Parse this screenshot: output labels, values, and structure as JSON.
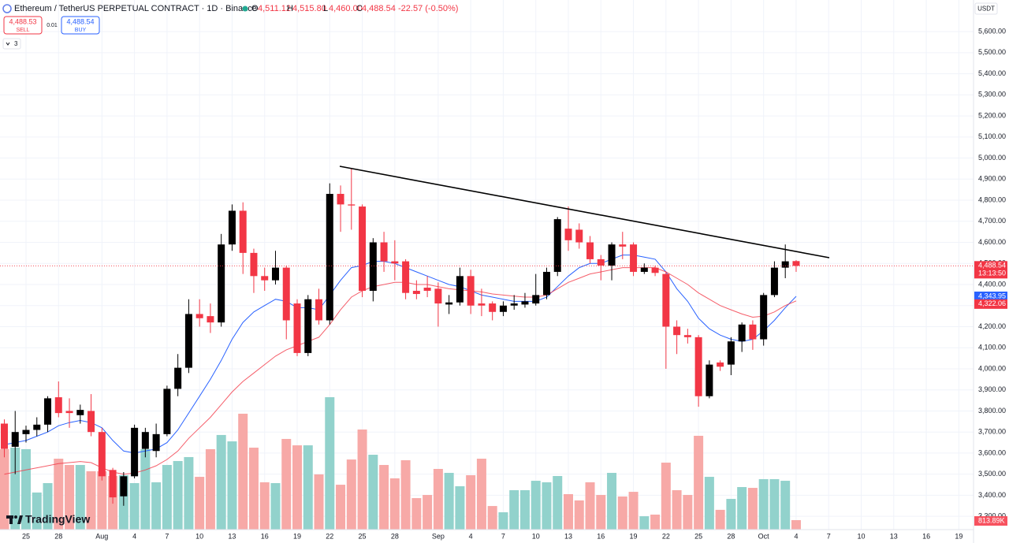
{
  "header": {
    "title": "Ethereum / TetherUS PERPETUAL CONTRACT · 1D · Binance",
    "o_label": "O",
    "open": "4,511.12",
    "h_label": "H",
    "high": "4,515.80",
    "l_label": "L",
    "low": "4,460.00",
    "c_label": "C",
    "close": "4,488.54",
    "change": "-22.57 (-0.50%)"
  },
  "trade": {
    "sell_price": "4,488.53",
    "sell": "SELL",
    "spread": "0.01",
    "buy_price": "4,488.54",
    "buy": "BUY",
    "indicators": "3"
  },
  "currency": "USDT",
  "logo": "TradingView",
  "chart_data": {
    "type": "candlestick",
    "ylim": [
      3237,
      5750
    ],
    "yticks": [
      {
        "value": 3300,
        "label": "3,300.00"
      },
      {
        "value": 3400,
        "label": "3,400.00"
      },
      {
        "value": 3500,
        "label": "3,500.00"
      },
      {
        "value": 3600,
        "label": "3,600.00"
      },
      {
        "value": 3700,
        "label": "3,700.00"
      },
      {
        "value": 3800,
        "label": "3,800.00"
      },
      {
        "value": 3900,
        "label": "3,900.00"
      },
      {
        "value": 4000,
        "label": "4,000.00"
      },
      {
        "value": 4100,
        "label": "4,100.00"
      },
      {
        "value": 4200,
        "label": "4,200.00"
      },
      {
        "value": 4300,
        "label": "4,300.00"
      },
      {
        "value": 4400,
        "label": "4,400.00"
      },
      {
        "value": 4500,
        "label": "4,500.00"
      },
      {
        "value": 4600,
        "label": "4,600.00"
      },
      {
        "value": 4700,
        "label": "4,700.00"
      },
      {
        "value": 4800,
        "label": "4,800.00"
      },
      {
        "value": 4900,
        "label": "4,900.00"
      },
      {
        "value": 5000,
        "label": "5,000.00"
      },
      {
        "value": 5100,
        "label": "5,100.00"
      },
      {
        "value": 5200,
        "label": "5,200.00"
      },
      {
        "value": 5300,
        "label": "5,300.00"
      },
      {
        "value": 5400,
        "label": "5,400.00"
      },
      {
        "value": 5500,
        "label": "5,500.00"
      },
      {
        "value": 5600,
        "label": "5,600.00"
      }
    ],
    "grid": true,
    "categories": [
      null,
      null,
      "25",
      null,
      null,
      "28",
      null,
      null,
      null,
      "Aug",
      null,
      null,
      "4",
      null,
      null,
      "7",
      null,
      null,
      "10",
      null,
      null,
      "13",
      null,
      null,
      "16",
      null,
      null,
      "19",
      null,
      null,
      "22",
      null,
      null,
      "25",
      null,
      null,
      "28",
      null,
      null,
      null,
      "Sep",
      null,
      null,
      "4",
      null,
      null,
      "7",
      null,
      null,
      "10",
      null,
      null,
      "13",
      null,
      null,
      "16",
      null,
      null,
      "19",
      null,
      null,
      "22",
      null,
      null,
      "25",
      null,
      null,
      "28",
      null,
      null,
      "Oct",
      null,
      null,
      "4",
      null,
      null,
      "7",
      null,
      null,
      "10",
      null,
      null,
      "13",
      null,
      null,
      "16",
      null,
      null,
      "19"
    ],
    "open": [
      3740,
      3630,
      3690,
      3710,
      3735,
      3865,
      3800,
      3780,
      3800,
      3700,
      3520,
      3395,
      3490,
      3620,
      3610,
      3690,
      3905,
      4005,
      4260,
      4250,
      4220,
      4590,
      4750,
      4550,
      4440,
      4420,
      4480,
      4310,
      4075,
      4330,
      4230,
      4830,
      4780,
      4770,
      4370,
      4600,
      4510,
      4510,
      4370,
      4385,
      4380,
      4305,
      4315,
      4440,
      4310,
      4310,
      4270,
      4300,
      4305,
      4310,
      4350,
      4460,
      4665,
      4660,
      4600,
      4520,
      4490,
      4590,
      4590,
      4460,
      4480,
      4450,
      4200,
      4160,
      4150,
      3870,
      4030,
      4020,
      4130,
      4210,
      4140,
      4350,
      4480,
      4511.12,
      null,
      null,
      null,
      null,
      null,
      null,
      null,
      null,
      null,
      null,
      null,
      null,
      null,
      null,
      null
    ],
    "high": [
      3760,
      3800,
      3730,
      3770,
      3870,
      3940,
      3860,
      3830,
      3880,
      3720,
      3530,
      3510,
      3735,
      3720,
      3740,
      3920,
      4070,
      4330,
      4330,
      4310,
      4640,
      4780,
      4790,
      4570,
      4480,
      4560,
      4490,
      4330,
      4350,
      4380,
      4880,
      4870,
      4950,
      4780,
      4620,
      4650,
      4610,
      4520,
      4420,
      4440,
      4410,
      4350,
      4480,
      4470,
      4380,
      4320,
      4320,
      4350,
      4360,
      4450,
      4480,
      4720,
      4770,
      4690,
      4630,
      4540,
      4600,
      4650,
      4600,
      4500,
      4490,
      4460,
      4230,
      4190,
      4160,
      4040,
      4040,
      4150,
      4220,
      4230,
      4360,
      4510,
      4590,
      4515.8,
      null,
      null,
      null,
      null,
      null,
      null,
      null,
      null,
      null,
      null,
      null,
      null,
      null,
      null,
      null
    ],
    "low": [
      3580,
      3500,
      3650,
      3680,
      3700,
      3770,
      3720,
      3740,
      3680,
      3470,
      3360,
      3350,
      3480,
      3580,
      3580,
      3680,
      3870,
      3980,
      4200,
      4170,
      4200,
      4560,
      4450,
      4360,
      4370,
      4400,
      4140,
      4060,
      4060,
      4210,
      4210,
      4650,
      4660,
      4340,
      4320,
      4460,
      4420,
      4330,
      4330,
      4340,
      4200,
      4260,
      4300,
      4260,
      4250,
      4230,
      4250,
      4280,
      4290,
      4300,
      4330,
      4440,
      4560,
      4570,
      4500,
      4420,
      4420,
      4520,
      4440,
      4450,
      4440,
      4000,
      4070,
      4120,
      3820,
      3860,
      3990,
      3970,
      4080,
      4090,
      4110,
      4340,
      4430,
      4460,
      null,
      null,
      null,
      null,
      null,
      null,
      null,
      null,
      null,
      null,
      null,
      null,
      null,
      null,
      null
    ],
    "close": [
      3620,
      3700,
      3710,
      3735,
      3860,
      3790,
      3790,
      3805,
      3700,
      3490,
      3390,
      3490,
      3720,
      3700,
      3690,
      3905,
      4005,
      4260,
      4240,
      4220,
      4590,
      4750,
      4550,
      4440,
      4420,
      4480,
      4230,
      4075,
      4330,
      4230,
      4830,
      4780,
      4775,
      4370,
      4600,
      4510,
      4500,
      4360,
      4355,
      4370,
      4310,
      4315,
      4440,
      4300,
      4300,
      4270,
      4300,
      4310,
      4320,
      4350,
      4460,
      4710,
      4610,
      4600,
      4520,
      4490,
      4590,
      4580,
      4460,
      4480,
      4455,
      4200,
      4160,
      4150,
      3870,
      4020,
      4010,
      4130,
      4210,
      4140,
      4350,
      4480,
      4510,
      4488.54,
      null,
      null,
      null,
      null,
      null,
      null,
      null,
      null,
      null,
      null,
      null,
      null,
      null,
      null,
      null
    ],
    "up_color": "#000000",
    "down_color": "#f23645",
    "last_price_label": "4,488.54",
    "countdown": "13:13:50",
    "moving_averages": [
      {
        "color": "#2962ff",
        "last_label": "4,343.95",
        "values": [
          3640,
          3650,
          3660,
          3680,
          3700,
          3730,
          3745,
          3755,
          3745,
          3720,
          3660,
          3610,
          3600,
          3610,
          3620,
          3650,
          3710,
          3790,
          3870,
          3950,
          4040,
          4140,
          4220,
          4270,
          4300,
          4330,
          4320,
          4290,
          4290,
          4280,
          4350,
          4420,
          4480,
          4490,
          4510,
          4510,
          4500,
          4480,
          4460,
          4440,
          4420,
          4400,
          4390,
          4370,
          4350,
          4340,
          4330,
          4320,
          4320,
          4320,
          4340,
          4390,
          4440,
          4480,
          4500,
          4500,
          4520,
          4540,
          4540,
          4530,
          4520,
          4460,
          4380,
          4320,
          4240,
          4190,
          4160,
          4140,
          4130,
          4140,
          4180,
          4230,
          4290,
          4343.95,
          null,
          null,
          null,
          null,
          null,
          null,
          null,
          null,
          null,
          null,
          null,
          null,
          null,
          null,
          null
        ]
      },
      {
        "color": "#f23645",
        "last_label": "4,322.06",
        "values": [
          3500,
          3510,
          3520,
          3530,
          3540,
          3550,
          3555,
          3560,
          3555,
          3530,
          3510,
          3500,
          3505,
          3520,
          3540,
          3570,
          3610,
          3670,
          3720,
          3770,
          3830,
          3890,
          3940,
          3980,
          4020,
          4060,
          4090,
          4110,
          4130,
          4150,
          4210,
          4280,
          4340,
          4370,
          4390,
          4400,
          4410,
          4410,
          4400,
          4400,
          4390,
          4380,
          4375,
          4370,
          4365,
          4355,
          4350,
          4345,
          4340,
          4340,
          4350,
          4380,
          4410,
          4430,
          4450,
          4460,
          4470,
          4480,
          4480,
          4480,
          4480,
          4460,
          4430,
          4400,
          4360,
          4330,
          4300,
          4280,
          4260,
          4245,
          4250,
          4270,
          4300,
          4322.06,
          null,
          null,
          null,
          null,
          null,
          null,
          null,
          null,
          null,
          null,
          null,
          null,
          null,
          null,
          null
        ]
      }
    ],
    "y2lim": [
      0,
      45560000
    ],
    "volume": {
      "axis": "y2",
      "up_color": "#92d2cc",
      "down_color": "#f7a9a7",
      "values": [
        6920000,
        7050000,
        6920000,
        3190000,
        4000000,
        6100000,
        5560000,
        5560000,
        5020000,
        5020000,
        4610000,
        4680000,
        4000000,
        6920000,
        4070000,
        5560000,
        5900000,
        6240000,
        4540000,
        6920000,
        8140000,
        7590000,
        9970000,
        7050000,
        4070000,
        4000000,
        7800000,
        7250000,
        7250000,
        4750000,
        11390000,
        3860000,
        6030000,
        8610000,
        6440000,
        5560000,
        4410000,
        5970000,
        2710000,
        2980000,
        5220000,
        4880000,
        3730000,
        4680000,
        6100000,
        2030000,
        1490000,
        3390000,
        3390000,
        4200000,
        4070000,
        4610000,
        3050000,
        2510000,
        4070000,
        2980000,
        4880000,
        2850000,
        3250000,
        1150000,
        1290000,
        5760000,
        3390000,
        2980000,
        8070000,
        4540000,
        1700000,
        2640000,
        3660000,
        3590000,
        4340000,
        4340000,
        4200000,
        813890,
        null,
        null,
        null,
        null,
        null,
        null,
        null,
        null,
        null,
        null,
        null,
        null,
        null,
        null,
        null
      ],
      "value_labels": [
        null,
        null,
        null,
        null,
        null,
        null,
        null,
        null,
        null,
        null,
        null,
        null,
        null,
        null,
        null,
        null,
        null,
        null,
        null,
        null,
        null,
        null,
        null,
        null,
        null,
        null,
        null,
        null,
        null,
        null,
        null,
        null,
        null,
        null,
        null,
        null,
        null,
        null,
        null,
        null,
        null,
        null,
        null,
        null,
        null,
        null,
        null,
        null,
        null,
        null,
        null,
        null,
        null,
        null,
        null,
        null,
        null,
        null,
        null,
        null,
        null,
        null,
        null,
        null,
        null,
        null,
        null,
        null,
        null,
        null,
        null,
        null,
        null,
        "813.89K",
        null,
        null,
        null,
        null,
        null,
        null,
        null,
        null,
        null,
        null,
        null,
        null,
        null,
        null,
        null
      ]
    }
  }
}
